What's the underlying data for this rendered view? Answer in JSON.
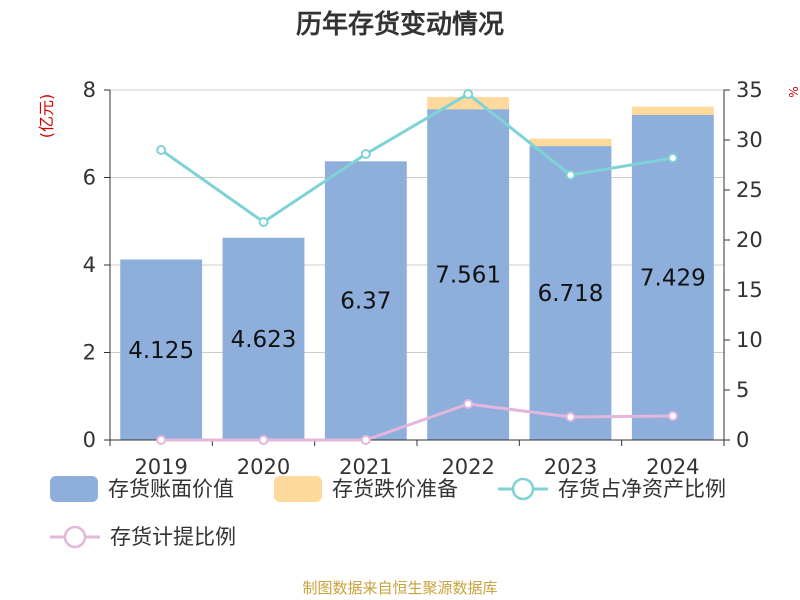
{
  "colors": {
    "book_value": "#8eaedb",
    "impairment": "#fdd99b",
    "net_asset_ratio": "#7fd3d6",
    "provision_ratio": "#e3b6dc",
    "axis_label_left": "#d40000",
    "axis_label_right": "#d40000",
    "source": "#c8a23c",
    "text": "#333333"
  },
  "source_text": "制图数据来自恒生聚源数据库",
  "chart_data": {
    "type": "bar",
    "title": "历年存货变动情况",
    "ylabel": "(亿元)",
    "y2label": "%",
    "categories": [
      "2019",
      "2020",
      "2021",
      "2022",
      "2023",
      "2024"
    ],
    "ylim": [
      0,
      8
    ],
    "yticks": [
      0,
      2,
      4,
      6,
      8
    ],
    "y2lim": [
      0,
      35
    ],
    "y2ticks": [
      0,
      5,
      10,
      15,
      20,
      25,
      30,
      35
    ],
    "grid": true,
    "legend_position": "bottom",
    "series": [
      {
        "name": "存货账面价值",
        "type": "bar",
        "axis": "left",
        "values": [
          4.125,
          4.623,
          6.37,
          7.561,
          6.718,
          7.429
        ],
        "labels": [
          "4.125",
          "4.623",
          "6.37",
          "7.561",
          "6.718",
          "7.429"
        ]
      },
      {
        "name": "存货跌价准备",
        "type": "bar-stacked",
        "axis": "left",
        "values": [
          0.0,
          0.0,
          0.0,
          0.28,
          0.17,
          0.19
        ]
      },
      {
        "name": "存货占净资产比例",
        "type": "line",
        "axis": "right",
        "values": [
          29.0,
          21.8,
          28.6,
          34.6,
          26.5,
          28.2
        ]
      },
      {
        "name": "存货计提比例",
        "type": "line",
        "axis": "right",
        "values": [
          0.0,
          0.0,
          0.0,
          3.6,
          2.3,
          2.4
        ]
      }
    ]
  }
}
